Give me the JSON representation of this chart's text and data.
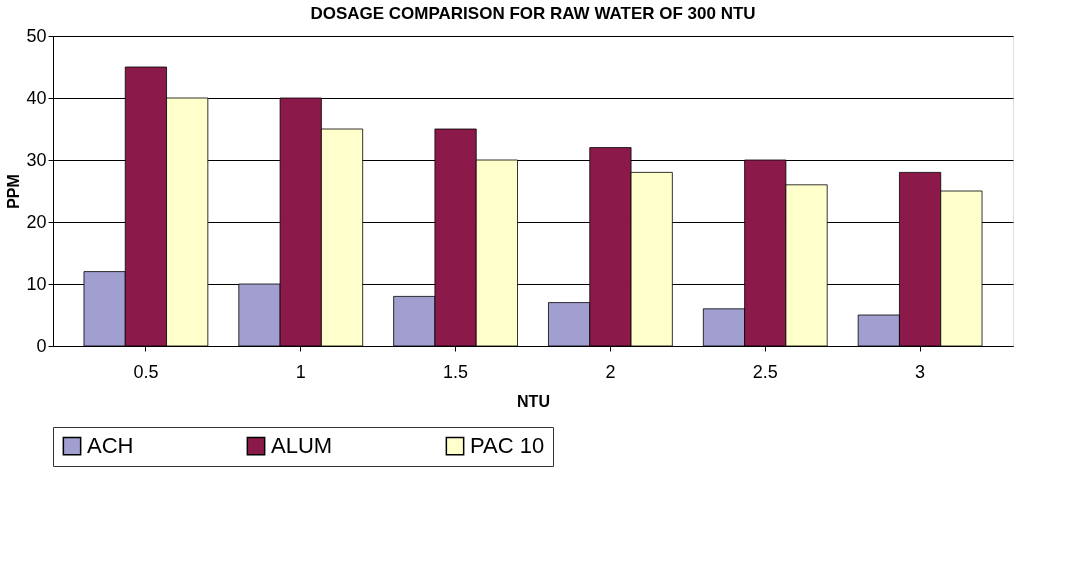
{
  "chart_data": {
    "type": "bar",
    "title": "DOSAGE COMPARISON FOR RAW WATER OF 300 NTU",
    "xlabel": "NTU",
    "ylabel": "PPM",
    "categories": [
      "0.5",
      "1",
      "1.5",
      "2",
      "2.5",
      "3"
    ],
    "series": [
      {
        "name": "ACH",
        "color": "#a09fd0",
        "values": [
          12,
          10,
          8,
          7,
          6,
          5
        ]
      },
      {
        "name": "ALUM",
        "color": "#8b1a4a",
        "values": [
          45,
          40,
          35,
          32,
          30,
          28
        ]
      },
      {
        "name": "PAC 10",
        "color": "#ffffcc",
        "values": [
          40,
          35,
          30,
          28,
          26,
          25
        ]
      }
    ],
    "ylim": [
      0,
      50
    ],
    "yticks": [
      0,
      10,
      20,
      30,
      40,
      50
    ],
    "grid": "y",
    "legend": "bottom"
  }
}
